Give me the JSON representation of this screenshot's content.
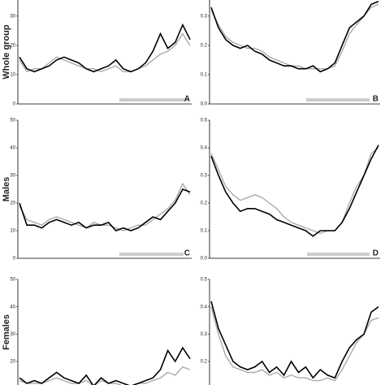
{
  "chart_data": [
    {
      "type": "line",
      "panel": "A",
      "row_label": "Whole group",
      "ylim": [
        0,
        35.5
      ],
      "yticks": [
        0,
        10,
        20,
        30
      ],
      "series": [
        {
          "color": "#000000",
          "values": [
            16,
            12,
            11,
            12,
            13,
            15,
            16,
            15,
            14,
            12,
            11,
            12,
            13,
            15,
            12,
            11,
            12,
            14,
            18,
            24,
            19,
            21,
            27,
            22
          ]
        },
        {
          "color": "#aaaaaa",
          "values": [
            15,
            11,
            12,
            12,
            14,
            16,
            15,
            14,
            13,
            12,
            12,
            11,
            12,
            13,
            11,
            11,
            12,
            13,
            15,
            17,
            18,
            20,
            24,
            20
          ]
        }
      ]
    },
    {
      "type": "line",
      "panel": "B",
      "ylim": [
        0,
        0.355
      ],
      "yticks": [
        {
          "value": 0,
          "label": "0.0"
        },
        0.1,
        0.2,
        0.3
      ],
      "series": [
        {
          "color": "#000000",
          "values": [
            0.33,
            0.26,
            0.22,
            0.2,
            0.19,
            0.2,
            0.18,
            0.17,
            0.15,
            0.14,
            0.13,
            0.13,
            0.12,
            0.12,
            0.13,
            0.11,
            0.12,
            0.14,
            0.2,
            0.26,
            0.28,
            0.3,
            0.34,
            0.35
          ]
        },
        {
          "color": "#aaaaaa",
          "values": [
            0.32,
            0.27,
            0.23,
            0.21,
            0.2,
            0.19,
            0.19,
            0.18,
            0.16,
            0.15,
            0.14,
            0.13,
            0.13,
            0.12,
            0.12,
            0.12,
            0.12,
            0.13,
            0.18,
            0.24,
            0.27,
            0.3,
            0.33,
            0.34
          ]
        }
      ]
    },
    {
      "type": "line",
      "panel": "C",
      "row_label": "Males",
      "ylim": [
        0,
        50
      ],
      "yticks": [
        0,
        10,
        20,
        30,
        40,
        50
      ],
      "series": [
        {
          "color": "#000000",
          "values": [
            20,
            12,
            12,
            11,
            13,
            14,
            13,
            12,
            13,
            11,
            12,
            12,
            13,
            10,
            11,
            10,
            11,
            13,
            15,
            14,
            17,
            20,
            25,
            24
          ]
        },
        {
          "color": "#aaaaaa",
          "values": [
            19,
            14,
            13,
            12,
            14,
            15,
            14,
            13,
            12,
            11,
            13,
            12,
            12,
            11,
            10,
            11,
            12,
            12,
            14,
            16,
            18,
            21,
            27,
            23
          ]
        }
      ]
    },
    {
      "type": "line",
      "panel": "D",
      "ylim": [
        0,
        0.5
      ],
      "yticks": [
        {
          "value": 0,
          "label": "0.0"
        },
        0.1,
        0.2,
        0.3,
        0.4,
        0.5
      ],
      "series": [
        {
          "color": "#000000",
          "values": [
            0.37,
            0.3,
            0.24,
            0.2,
            0.17,
            0.18,
            0.18,
            0.17,
            0.16,
            0.14,
            0.13,
            0.12,
            0.11,
            0.1,
            0.08,
            0.1,
            0.1,
            0.1,
            0.13,
            0.18,
            0.24,
            0.3,
            0.36,
            0.41
          ]
        },
        {
          "color": "#aaaaaa",
          "values": [
            0.38,
            0.32,
            0.26,
            0.23,
            0.21,
            0.22,
            0.23,
            0.22,
            0.2,
            0.18,
            0.15,
            0.13,
            0.12,
            0.11,
            0.1,
            0.09,
            0.1,
            0.1,
            0.13,
            0.2,
            0.26,
            0.3,
            0.38,
            0.4
          ]
        }
      ]
    },
    {
      "type": "line",
      "row_label": "Females",
      "ylim": [
        11.4,
        50
      ],
      "yticks": [
        20,
        30,
        40,
        50
      ],
      "series": [
        {
          "color": "#000000",
          "values": [
            14,
            12,
            13,
            12,
            14,
            16,
            14,
            13,
            12,
            15,
            11,
            14,
            12,
            13,
            12,
            11,
            12,
            13,
            14,
            17,
            24,
            20,
            25,
            21
          ]
        },
        {
          "color": "#aaaaaa",
          "values": [
            13,
            12,
            12,
            12,
            13,
            14,
            13,
            12,
            12,
            13,
            11,
            13,
            12,
            12,
            11,
            11,
            12,
            12,
            13,
            14,
            16,
            15,
            18,
            17
          ]
        }
      ]
    },
    {
      "type": "line",
      "ylim": [
        0.114,
        0.5
      ],
      "yticks": [
        0.2,
        0.3,
        0.4,
        0.5
      ],
      "series": [
        {
          "color": "#000000",
          "values": [
            0.42,
            0.32,
            0.26,
            0.2,
            0.18,
            0.17,
            0.18,
            0.2,
            0.16,
            0.18,
            0.15,
            0.2,
            0.16,
            0.18,
            0.14,
            0.17,
            0.15,
            0.14,
            0.2,
            0.25,
            0.28,
            0.3,
            0.38,
            0.4
          ]
        },
        {
          "color": "#aaaaaa",
          "values": [
            0.4,
            0.3,
            0.22,
            0.18,
            0.17,
            0.16,
            0.16,
            0.17,
            0.15,
            0.16,
            0.14,
            0.15,
            0.14,
            0.14,
            0.13,
            0.13,
            0.14,
            0.13,
            0.17,
            0.22,
            0.27,
            0.3,
            0.35,
            0.36
          ]
        }
      ]
    }
  ]
}
